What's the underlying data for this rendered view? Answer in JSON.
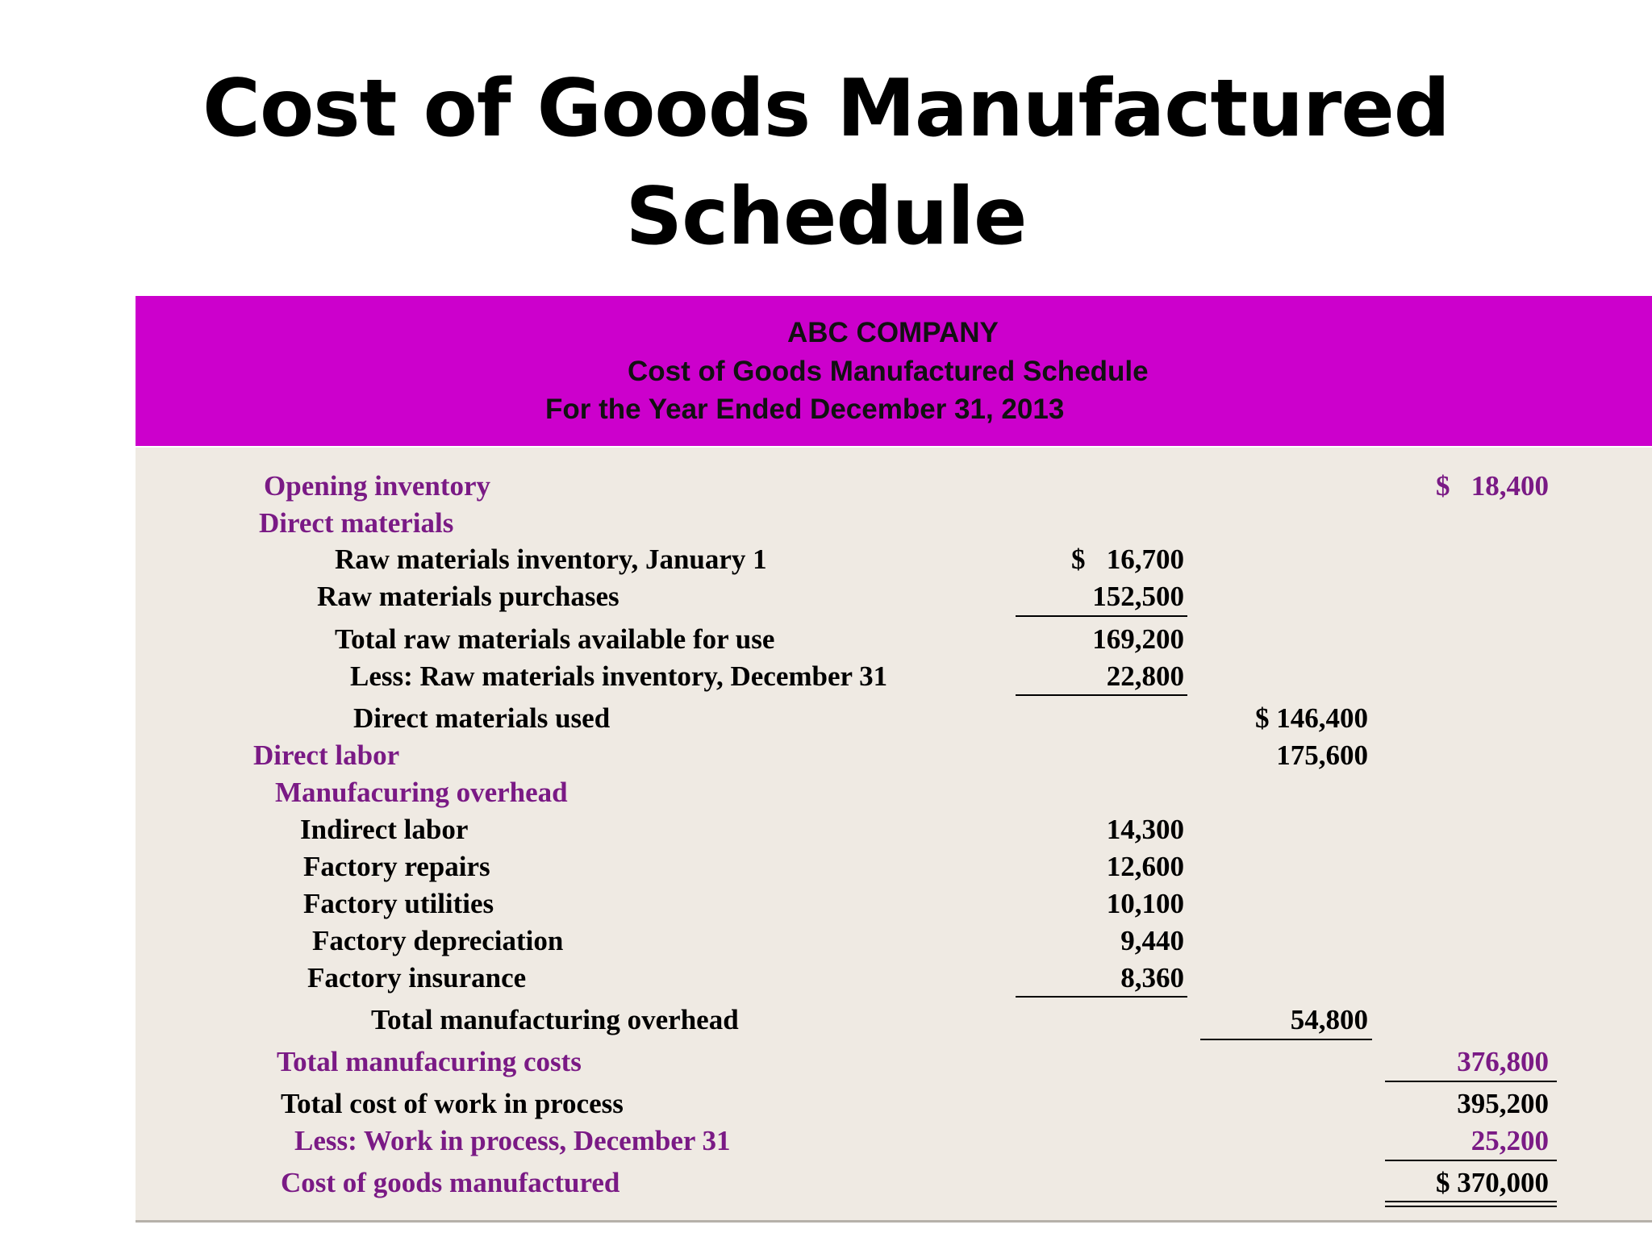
{
  "page_title": {
    "line1": "Cost of Goods Manufactured",
    "line2": "Schedule"
  },
  "header": {
    "company": "ABC COMPANY",
    "statement": "Cost of Goods Manufactured Schedule",
    "period": "For the Year Ended December 31, 2013"
  },
  "colors": {
    "header_band": "#cc00cc",
    "purple_text": "#7a1a85",
    "body_background": "#efeae3"
  },
  "rows": [
    {
      "label": "Opening inventory",
      "col3": "$   18,400"
    },
    {
      "label": "Direct materials"
    },
    {
      "label": "Raw materials inventory, January 1",
      "col1": "$   16,700"
    },
    {
      "label": "Raw materials purchases",
      "col1": "152,500"
    },
    {
      "label": "Total raw materials available for use",
      "col1": "169,200"
    },
    {
      "label": "Less:  Raw materials inventory, December 31",
      "col1": "22,800"
    },
    {
      "label": "Direct materials used",
      "col2": "$ 146,400"
    },
    {
      "label": "Direct labor",
      "col2": "175,600"
    },
    {
      "label": "Manufacuring overhead"
    },
    {
      "label": "Indirect labor",
      "col1": "14,300"
    },
    {
      "label": "Factory repairs",
      "col1": "12,600"
    },
    {
      "label": "Factory utilities",
      "col1": "10,100"
    },
    {
      "label": "Factory depreciation",
      "col1": "9,440"
    },
    {
      "label": "Factory insurance",
      "col1": "8,360"
    },
    {
      "label": "Total manufacturing overhead",
      "col2": "54,800"
    },
    {
      "label": "Total manufacuring costs",
      "col3": "376,800"
    },
    {
      "label": "Total cost of work in process",
      "col3": "395,200"
    },
    {
      "label": "Less:  Work in process, December 31",
      "col3": "25,200"
    },
    {
      "label": "Cost of goods manufactured",
      "col3": "$ 370,000"
    }
  ]
}
